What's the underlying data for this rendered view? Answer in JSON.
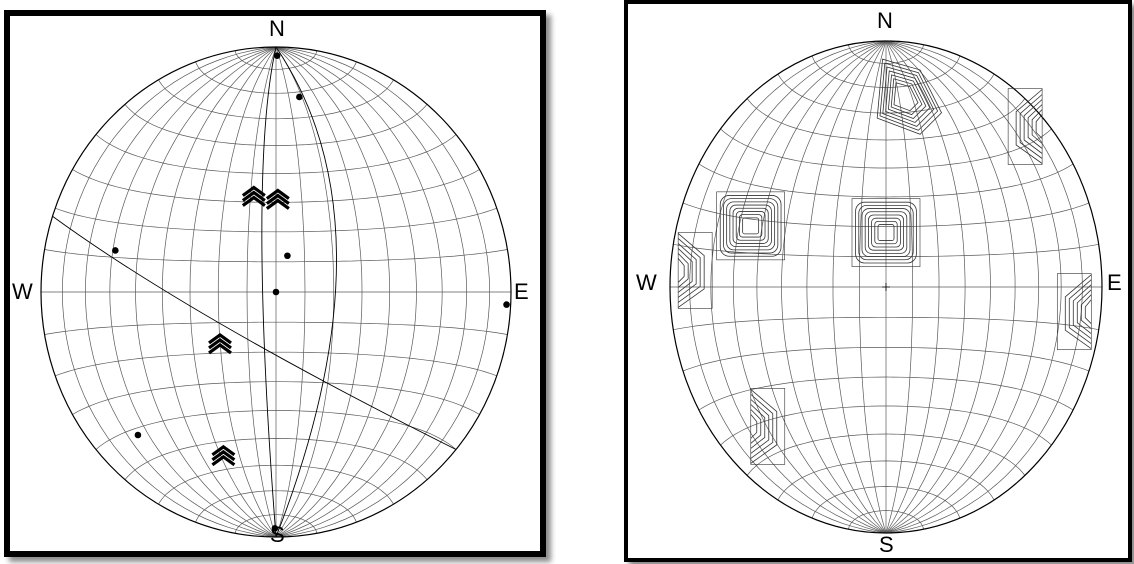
{
  "directions": {
    "north": "N",
    "south": "S",
    "west": "W",
    "east": "E"
  },
  "colors": {
    "ink": "#000000",
    "grid": "#5a5a5a",
    "contour": "#333333"
  },
  "left_stereonet": {
    "projection": "equal-area",
    "poles": [
      {
        "lon": 4,
        "lat": 86
      },
      {
        "lon": 18,
        "lat": 68
      },
      {
        "lon": -59,
        "lat": 12
      },
      {
        "lon": 4,
        "lat": 12
      },
      {
        "lon": 0,
        "lat": 0
      },
      {
        "lon": 88,
        "lat": -3
      },
      {
        "lon": -65,
        "lat": -42
      },
      {
        "lon": -4,
        "lat": -86
      }
    ],
    "arrow_markers": [
      {
        "lon": -4,
        "lat": 33,
        "pair": true
      },
      {
        "lon": -20,
        "lat": -16,
        "pair": false
      },
      {
        "lon": -28,
        "lat": -54,
        "pair": false
      }
    ]
  },
  "right_stereonet": {
    "projection": "equal-area",
    "contour_groups": [
      {
        "lon": -55,
        "lat": 18,
        "shape": "square"
      },
      {
        "lon": 0,
        "lat": 18,
        "shape": "square"
      },
      {
        "lon": 14,
        "lat": 66,
        "shape": "lobe"
      },
      {
        "lon": 86,
        "lat": 42,
        "shape": "edge"
      },
      {
        "lon": 85,
        "lat": -6,
        "shape": "edge"
      },
      {
        "lon": -86,
        "lat": 4,
        "shape": "edge"
      },
      {
        "lon": -68,
        "lat": -40,
        "shape": "edge"
      }
    ]
  }
}
